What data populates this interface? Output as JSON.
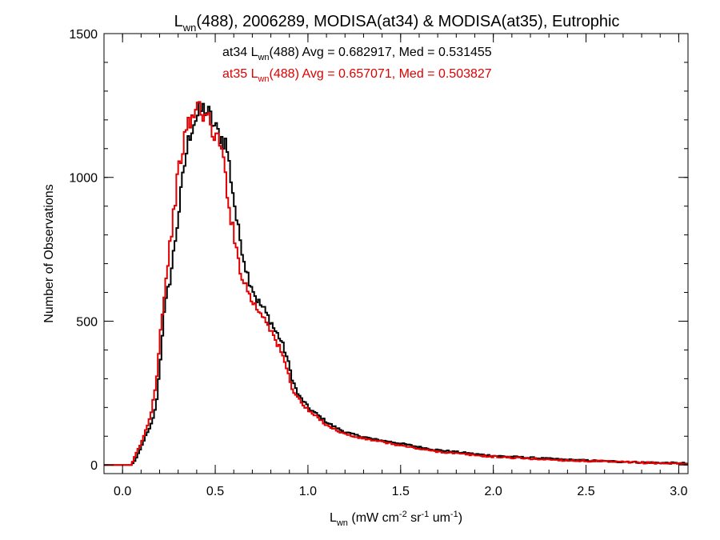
{
  "chart_data": {
    "type": "line",
    "title": {
      "pre": "L",
      "sub": "wn",
      "post": "(488), 2006289, MODISA(at34) & MODISA(at35), Eutrophic"
    },
    "xlabel": {
      "pre": "L",
      "sub": "wn",
      "mid1": " (mW cm",
      "sup1": "-2",
      "mid2": " sr",
      "sup2": "-1",
      "mid3": " um",
      "sup3": "-1",
      "post": ")"
    },
    "ylabel": "Number of Observations",
    "xlim": [
      -0.1,
      3.05
    ],
    "ylim": [
      -30,
      1500
    ],
    "xticks": [
      {
        "value": 0.0,
        "label": "0.0"
      },
      {
        "value": 0.5,
        "label": "0.5"
      },
      {
        "value": 1.0,
        "label": "1.0"
      },
      {
        "value": 1.5,
        "label": "1.5"
      },
      {
        "value": 2.0,
        "label": "2.0"
      },
      {
        "value": 2.5,
        "label": "2.5"
      },
      {
        "value": 3.0,
        "label": "3.0"
      }
    ],
    "yticks": [
      {
        "value": 0,
        "label": "0"
      },
      {
        "value": 500,
        "label": "500"
      },
      {
        "value": 1000,
        "label": "1000"
      },
      {
        "value": 1500,
        "label": "1500"
      }
    ],
    "annotations": [
      {
        "pre": "at34 L",
        "sub": "wn",
        "post": "(488) Avg = 0.682917, Med = 0.531455",
        "color": "#000000"
      },
      {
        "pre": "at35 L",
        "sub": "wn",
        "post": "(488) Avg = 0.657071, Med = 0.503827",
        "color": "#e00000"
      }
    ],
    "series": [
      {
        "color": "#000000",
        "points": [
          [
            -0.1,
            0
          ],
          [
            0.05,
            0
          ],
          [
            0.08,
            30
          ],
          [
            0.1,
            60
          ],
          [
            0.12,
            95
          ],
          [
            0.15,
            130
          ],
          [
            0.18,
            200
          ],
          [
            0.2,
            330
          ],
          [
            0.22,
            500
          ],
          [
            0.24,
            590
          ],
          [
            0.26,
            660
          ],
          [
            0.28,
            760
          ],
          [
            0.3,
            860
          ],
          [
            0.32,
            970
          ],
          [
            0.34,
            1070
          ],
          [
            0.36,
            1140
          ],
          [
            0.38,
            1190
          ],
          [
            0.4,
            1210
          ],
          [
            0.42,
            1230
          ],
          [
            0.44,
            1240
          ],
          [
            0.46,
            1225
          ],
          [
            0.48,
            1200
          ],
          [
            0.5,
            1170
          ],
          [
            0.52,
            1150
          ],
          [
            0.54,
            1130
          ],
          [
            0.56,
            1120
          ],
          [
            0.58,
            1020
          ],
          [
            0.6,
            930
          ],
          [
            0.62,
            830
          ],
          [
            0.64,
            770
          ],
          [
            0.66,
            700
          ],
          [
            0.68,
            650
          ],
          [
            0.7,
            620
          ],
          [
            0.72,
            580
          ],
          [
            0.74,
            560
          ],
          [
            0.76,
            545
          ],
          [
            0.78,
            520
          ],
          [
            0.8,
            500
          ],
          [
            0.82,
            470
          ],
          [
            0.85,
            440
          ],
          [
            0.88,
            390
          ],
          [
            0.9,
            340
          ],
          [
            0.92,
            290
          ],
          [
            0.95,
            240
          ],
          [
            0.98,
            220
          ],
          [
            1.0,
            200
          ],
          [
            1.05,
            175
          ],
          [
            1.1,
            150
          ],
          [
            1.15,
            130
          ],
          [
            1.2,
            115
          ],
          [
            1.25,
            105
          ],
          [
            1.3,
            98
          ],
          [
            1.35,
            90
          ],
          [
            1.4,
            85
          ],
          [
            1.5,
            75
          ],
          [
            1.6,
            62
          ],
          [
            1.7,
            52
          ],
          [
            1.8,
            45
          ],
          [
            1.9,
            38
          ],
          [
            2.0,
            32
          ],
          [
            2.2,
            25
          ],
          [
            2.4,
            18
          ],
          [
            2.6,
            13
          ],
          [
            2.8,
            9
          ],
          [
            3.0,
            6
          ],
          [
            3.05,
            5
          ]
        ]
      },
      {
        "color": "#e00000",
        "points": [
          [
            -0.1,
            0
          ],
          [
            0.05,
            0
          ],
          [
            0.07,
            35
          ],
          [
            0.1,
            75
          ],
          [
            0.12,
            110
          ],
          [
            0.15,
            170
          ],
          [
            0.18,
            280
          ],
          [
            0.2,
            430
          ],
          [
            0.22,
            570
          ],
          [
            0.24,
            670
          ],
          [
            0.26,
            790
          ],
          [
            0.28,
            900
          ],
          [
            0.3,
            1010
          ],
          [
            0.32,
            1090
          ],
          [
            0.34,
            1150
          ],
          [
            0.36,
            1190
          ],
          [
            0.38,
            1210
          ],
          [
            0.4,
            1240
          ],
          [
            0.42,
            1250
          ],
          [
            0.44,
            1220
          ],
          [
            0.46,
            1200
          ],
          [
            0.48,
            1170
          ],
          [
            0.5,
            1150
          ],
          [
            0.52,
            1120
          ],
          [
            0.54,
            1080
          ],
          [
            0.56,
            980
          ],
          [
            0.58,
            880
          ],
          [
            0.6,
            800
          ],
          [
            0.62,
            730
          ],
          [
            0.64,
            670
          ],
          [
            0.66,
            630
          ],
          [
            0.68,
            600
          ],
          [
            0.7,
            570
          ],
          [
            0.72,
            550
          ],
          [
            0.74,
            530
          ],
          [
            0.76,
            520
          ],
          [
            0.78,
            500
          ],
          [
            0.8,
            470
          ],
          [
            0.82,
            440
          ],
          [
            0.85,
            400
          ],
          [
            0.88,
            350
          ],
          [
            0.9,
            300
          ],
          [
            0.92,
            260
          ],
          [
            0.95,
            230
          ],
          [
            0.98,
            205
          ],
          [
            1.0,
            190
          ],
          [
            1.05,
            165
          ],
          [
            1.1,
            140
          ],
          [
            1.15,
            122
          ],
          [
            1.2,
            108
          ],
          [
            1.25,
            98
          ],
          [
            1.3,
            92
          ],
          [
            1.35,
            86
          ],
          [
            1.4,
            80
          ],
          [
            1.5,
            68
          ],
          [
            1.6,
            56
          ],
          [
            1.7,
            47
          ],
          [
            1.8,
            40
          ],
          [
            1.9,
            34
          ],
          [
            2.0,
            29
          ],
          [
            2.2,
            22
          ],
          [
            2.4,
            16
          ],
          [
            2.6,
            12
          ],
          [
            2.8,
            8
          ],
          [
            3.0,
            5
          ],
          [
            3.05,
            4
          ]
        ]
      }
    ]
  }
}
